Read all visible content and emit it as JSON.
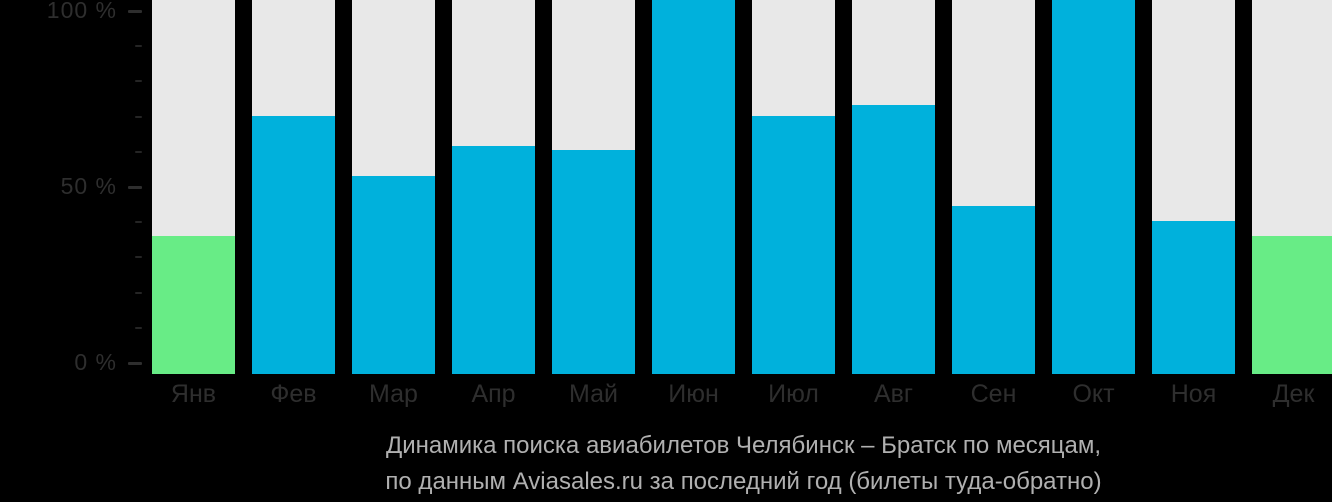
{
  "background_color": "#000000",
  "y_axis": {
    "labels": [
      {
        "text": "100 %",
        "value": 100
      },
      {
        "text": "50 %",
        "value": 50
      },
      {
        "text": "0 %",
        "value": 0
      }
    ]
  },
  "caption": {
    "line1": "Динамика поиска авиабилетов Челябинск – Братск по месяцам,",
    "line2": "по данным Aviasales.ru за последний год (билеты туда-обратно)"
  },
  "chart_data": {
    "type": "bar",
    "title": "Динамика поиска авиабилетов Челябинск – Братск по месяцам, по данным Aviasales.ru за последний год (билеты туда-обратно)",
    "categories": [
      "Янв",
      "Фев",
      "Мар",
      "Апр",
      "Май",
      "Июн",
      "Июл",
      "Авг",
      "Сен",
      "Окт",
      "Ноя",
      "Дек"
    ],
    "values": [
      37,
      69,
      53,
      61,
      60,
      100,
      69,
      72,
      45,
      100,
      41,
      37
    ],
    "unit": "%",
    "xlabel": "",
    "ylabel": "",
    "ylim": [
      0,
      100
    ],
    "ytick_interval": 10,
    "ytick_labeled_interval": 50,
    "grid": false,
    "legend": false,
    "bar_color": "#00b1dc",
    "highlight_color": "#68ec86",
    "highlight_indices": [
      0,
      11
    ],
    "track_color": "#e8e8e8",
    "axis_label_color": "#2e2e2e",
    "minor_tick_color": "#252525",
    "caption_color": "#b0b0b0"
  }
}
